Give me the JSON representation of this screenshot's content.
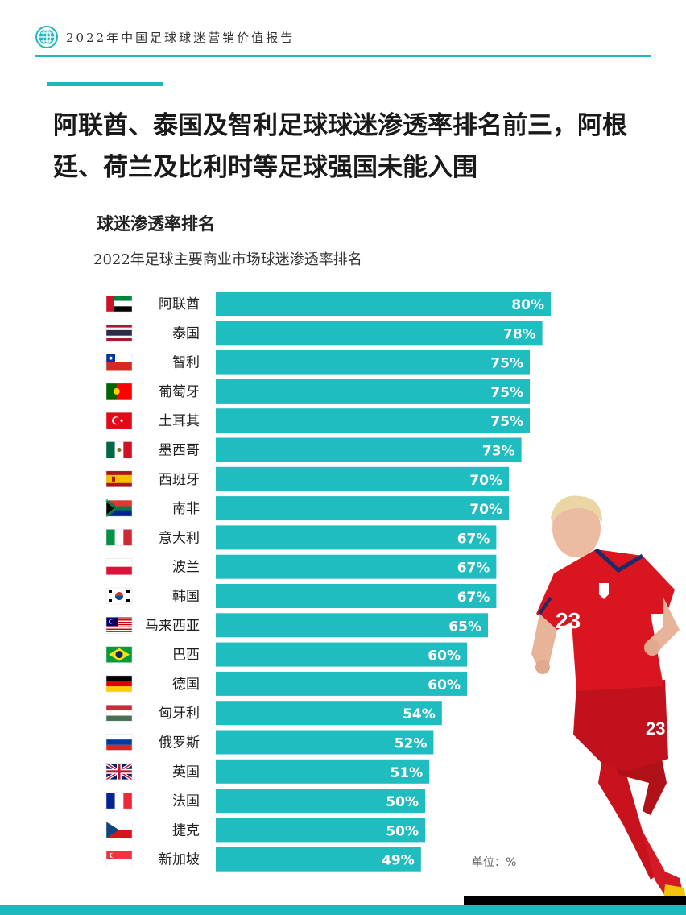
{
  "header": {
    "title": "2022年中国足球球迷营销价值报告"
  },
  "headline": "阿联酋、泰国及智利足球球迷渗透率排名前三，阿根廷、荷兰及比利时等足球强国未能入围",
  "unit_label": "单位：%",
  "colors": {
    "accent": "#1fb8bc",
    "bar": "#1fbcc0"
  },
  "chart_data": {
    "type": "bar",
    "orientation": "horizontal",
    "title": "球迷渗透率排名",
    "subtitle": "2022年足球主要商业市场球迷渗透率排名",
    "unit": "%",
    "categories": [
      "阿联酋",
      "泰国",
      "智利",
      "葡萄牙",
      "土耳其",
      "墨西哥",
      "西班牙",
      "南非",
      "意大利",
      "波兰",
      "韩国",
      "马来西亚",
      "巴西",
      "德国",
      "匈牙利",
      "俄罗斯",
      "英国",
      "法国",
      "捷克",
      "新加坡"
    ],
    "values": [
      80,
      78,
      75,
      75,
      75,
      73,
      70,
      70,
      67,
      67,
      67,
      65,
      60,
      60,
      54,
      52,
      51,
      50,
      50,
      49
    ],
    "data_labels": [
      "80%",
      "78%",
      "75%",
      "75%",
      "75%",
      "73%",
      "70%",
      "70%",
      "67%",
      "67%",
      "67%",
      "65%",
      "60%",
      "60%",
      "54%",
      "52%",
      "51%",
      "50%",
      "50%",
      "49%"
    ],
    "flags": [
      "uae-flag",
      "thailand-flag",
      "chile-flag",
      "portugal-flag",
      "turkey-flag",
      "mexico-flag",
      "spain-flag",
      "south-africa-flag",
      "italy-flag",
      "poland-flag",
      "korea-flag",
      "malaysia-flag",
      "brazil-flag",
      "germany-flag",
      "hungary-flag",
      "russia-flag",
      "uk-flag",
      "france-flag",
      "czech-flag",
      "singapore-flag"
    ],
    "xlim": [
      0,
      80
    ],
    "grid": false,
    "legend": "none"
  },
  "player_image": {
    "jersey_number": "23",
    "description_icon": "football-player-image"
  }
}
